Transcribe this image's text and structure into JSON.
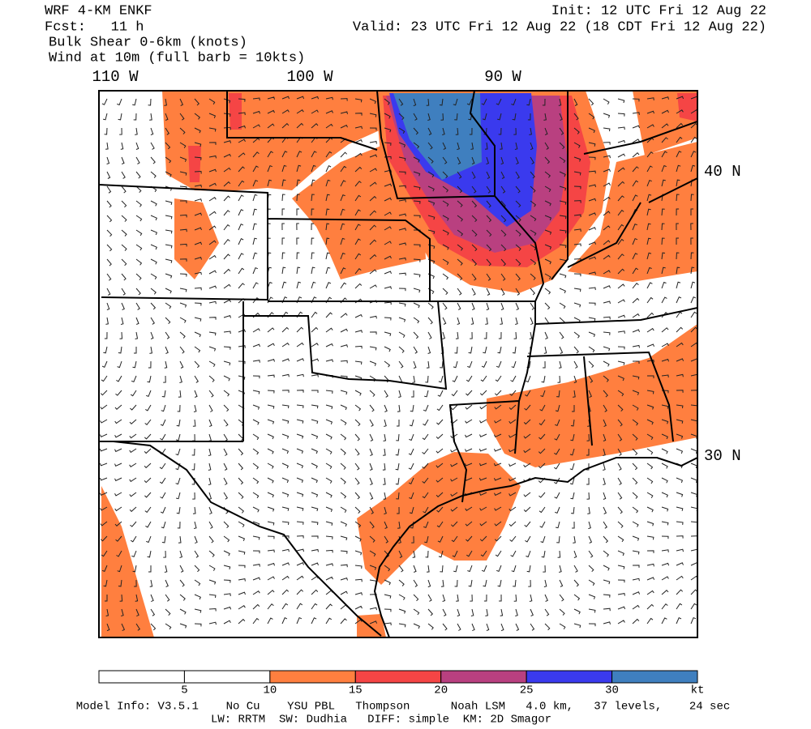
{
  "header": {
    "model": "WRF 4-KM ENKF",
    "forecast": "Fcst:   11 h",
    "field": "Bulk Shear 0-6km (knots)",
    "wind": "Wind at 10m (full barb = 10kts)",
    "init": "Init: 12 UTC Fri 12 Aug 22",
    "valid": "Valid: 23 UTC Fri 12 Aug 22 (18 CDT Fri 12 Aug 22)"
  },
  "map": {
    "lon_labels": [
      "110 W",
      "100 W",
      "90 W"
    ],
    "lat_labels": [
      "40 N",
      "30 N"
    ]
  },
  "colorbar": {
    "ticks": [
      5,
      10,
      15,
      20,
      25,
      30
    ],
    "unit": "kt",
    "colors": [
      "#ffffff",
      "#ffffff",
      "#ff7f3f",
      "#f54545",
      "#b94080",
      "#3a3aee",
      "#3f7fbf"
    ]
  },
  "footer": {
    "line1": "Model Info: V3.5.1    No Cu    YSU PBL   Thompson      Noah LSM   4.0 km,   37 levels,    24 sec",
    "line2": "LW: RRTM  SW: Dudhia   DIFF: simple  KM: 2D Smagor"
  }
}
